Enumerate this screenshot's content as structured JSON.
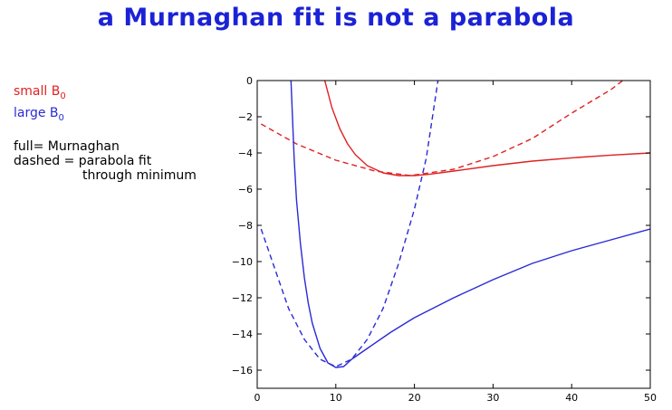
{
  "slide": {
    "title": "a Murnaghan fit is not a parabola"
  },
  "legend": {
    "small_label": "small B",
    "small_sub": "0",
    "large_label": "large B",
    "large_sub": "0",
    "small_color": "#e02020",
    "large_color": "#2a2ad6"
  },
  "notes": {
    "line1": "full= Murnaghan",
    "line2": "dashed = parabola fit",
    "line3": "through minimum"
  },
  "chart_data": {
    "type": "line",
    "title": "",
    "xlabel": "",
    "ylabel": "",
    "xlim": [
      0,
      50
    ],
    "ylim": [
      -17,
      0
    ],
    "xticks": [
      0,
      10,
      20,
      30,
      40,
      50
    ],
    "yticks": [
      0,
      -2,
      -4,
      -6,
      -8,
      -10,
      -12,
      -14,
      -16
    ],
    "grid": false,
    "series": [
      {
        "color": "#e02020",
        "style": "solid",
        "x": [
          8.6,
          9.5,
          10.5,
          11.5,
          12.5,
          14,
          16,
          18,
          20,
          22,
          25,
          30,
          35,
          40,
          45,
          50
        ],
        "y": [
          0,
          -1.5,
          -2.65,
          -3.5,
          -4.1,
          -4.7,
          -5.1,
          -5.25,
          -5.25,
          -5.17,
          -5.0,
          -4.7,
          -4.45,
          -4.27,
          -4.12,
          -4.0
        ]
      },
      {
        "color": "#e02020",
        "style": "dashed",
        "x": [
          0.5,
          5,
          10,
          15,
          19.5,
          25,
          30,
          35,
          40,
          45,
          46.5
        ],
        "y": [
          -2.4,
          -3.5,
          -4.4,
          -5.0,
          -5.25,
          -4.9,
          -4.2,
          -3.2,
          -1.8,
          -0.5,
          0
        ]
      },
      {
        "color": "#2a2ad6",
        "style": "solid",
        "x": [
          4.3,
          4.7,
          5,
          5.5,
          6,
          6.5,
          7,
          8,
          9,
          10,
          11,
          12,
          14,
          17,
          20,
          25,
          30,
          35,
          40,
          45,
          50
        ],
        "y": [
          0,
          -4.3,
          -6.6,
          -9.0,
          -10.9,
          -12.3,
          -13.4,
          -14.8,
          -15.6,
          -15.85,
          -15.8,
          -15.4,
          -14.8,
          -13.9,
          -13.1,
          -12.0,
          -11.0,
          -10.1,
          -9.4,
          -8.8,
          -8.2
        ]
      },
      {
        "color": "#2a2ad6",
        "style": "dashed",
        "x": [
          0.5,
          2,
          4,
          6,
          8,
          10,
          12,
          14,
          16,
          18,
          20,
          21.5,
          23
        ],
        "y": [
          -8.2,
          -10.1,
          -12.6,
          -14.3,
          -15.4,
          -15.8,
          -15.4,
          -14.3,
          -12.6,
          -10.1,
          -7.1,
          -4.3,
          0
        ]
      }
    ]
  }
}
